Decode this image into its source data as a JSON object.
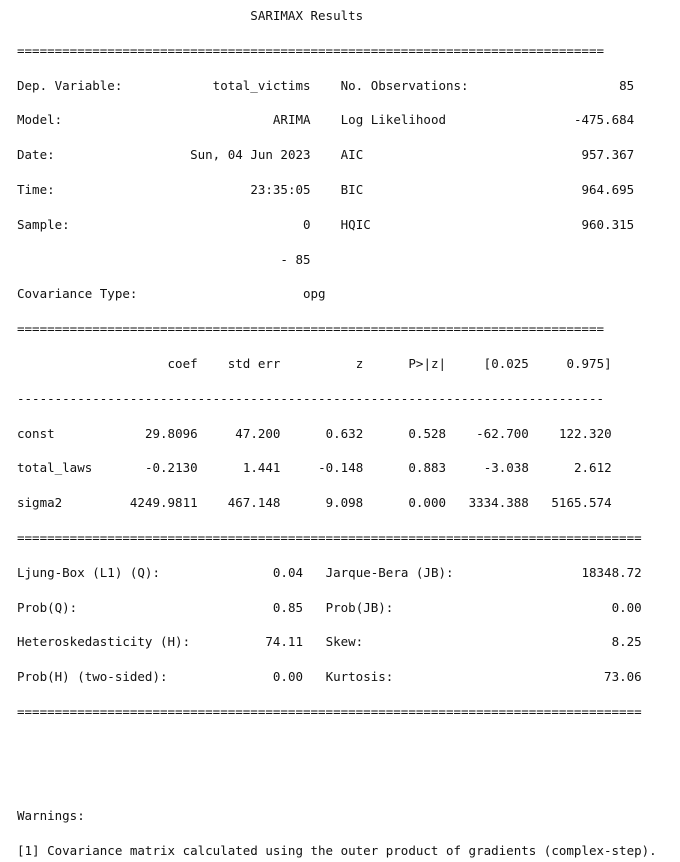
{
  "title": "SARIMAX Results",
  "separator_equals": "==============================================================================",
  "separator_equals_long": "===================================================================================",
  "separator_dashes": "------------------------------------------------------------------------------",
  "model_info": {
    "left": [
      {
        "label": "Dep. Variable:",
        "value": "total_victims"
      },
      {
        "label": "Model:",
        "value": "ARIMA"
      },
      {
        "label": "Date:",
        "value": "Sun, 04 Jun 2023"
      },
      {
        "label": "Time:",
        "value": "23:35:05"
      },
      {
        "label": "Sample:",
        "value": "0"
      },
      {
        "label": "",
        "value": "- 85"
      },
      {
        "label": "Covariance Type:",
        "value": "opg"
      }
    ],
    "right": [
      {
        "label": "No. Observations:",
        "value": "85"
      },
      {
        "label": "Log Likelihood",
        "value": "-475.684"
      },
      {
        "label": "AIC",
        "value": "957.367"
      },
      {
        "label": "BIC",
        "value": "964.695"
      },
      {
        "label": "HQIC",
        "value": "960.315"
      }
    ]
  },
  "coef_table": {
    "headers": [
      "coef",
      "std err",
      "z",
      "P>|z|",
      "[0.025",
      "0.975]"
    ],
    "rows": [
      {
        "name": "const",
        "values": [
          "29.8096",
          "47.200",
          "0.632",
          "0.528",
          "-62.700",
          "122.320"
        ]
      },
      {
        "name": "total_laws",
        "values": [
          "-0.2130",
          "1.441",
          "-0.148",
          "0.883",
          "-3.038",
          "2.612"
        ]
      },
      {
        "name": "sigma2",
        "values": [
          "4249.9811",
          "467.148",
          "9.098",
          "0.000",
          "3334.388",
          "5165.574"
        ]
      }
    ]
  },
  "diagnostics": [
    {
      "l_label": "Ljung-Box (L1) (Q):",
      "l_value": "0.04",
      "r_label": "Jarque-Bera (JB):",
      "r_value": "18348.72"
    },
    {
      "l_label": "Prob(Q):",
      "l_value": "0.85",
      "r_label": "Prob(JB):",
      "r_value": "0.00"
    },
    {
      "l_label": "Heteroskedasticity (H):",
      "l_value": "74.11",
      "r_label": "Skew:",
      "r_value": "8.25"
    },
    {
      "l_label": "Prob(H) (two-sided):",
      "l_value": "0.00",
      "r_label": "Kurtosis:",
      "r_value": "73.06"
    }
  ],
  "warnings": {
    "heading": "Warnings:",
    "items": [
      "[1] Covariance matrix calculated using the outer product of gradients (complex-step)."
    ]
  }
}
